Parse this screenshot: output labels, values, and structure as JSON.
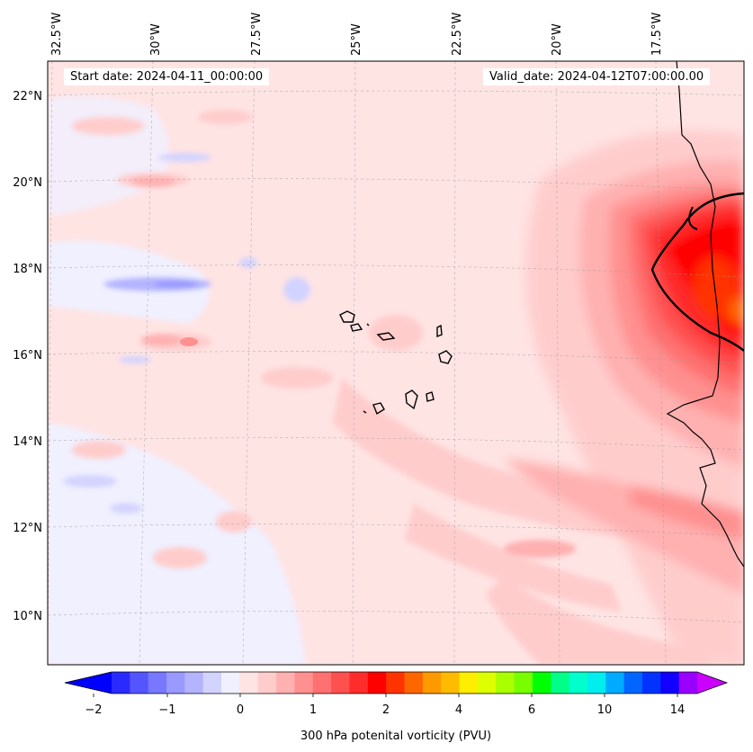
{
  "header": {
    "start_date": "Start date: 2024-04-11_00:00:00",
    "valid_date": "Valid_date: 2024-04-12T07:00:00.00"
  },
  "map": {
    "lon_labels": [
      "32.5°W",
      "30°W",
      "27.5°W",
      "25°W",
      "22.5°W",
      "20°W",
      "17.5°W"
    ],
    "lat_labels": [
      "22°N",
      "20°N",
      "18°N",
      "16°N",
      "14°N",
      "12°N",
      "10°N"
    ],
    "gridlines": true,
    "coastlines": true
  },
  "colorbar": {
    "label": "300 hPa potenital vorticity (PVU)",
    "tick_labels": [
      "−2",
      "−1",
      "0",
      "1",
      "2",
      "4",
      "6",
      "10",
      "14"
    ],
    "extend": "both",
    "colors": [
      "#0000ff",
      "#2a2aff",
      "#5555ff",
      "#7777ff",
      "#9999ff",
      "#b3b3ff",
      "#d3d3ff",
      "#f0f0ff",
      "#ffe4e4",
      "#ffcccc",
      "#ffb0b0",
      "#ff9090",
      "#ff7070",
      "#ff5050",
      "#ff2c2c",
      "#ff0000",
      "#ff3300",
      "#ff6600",
      "#ff9900",
      "#ffbb00",
      "#ffee00",
      "#ddff00",
      "#aaff00",
      "#77ff00",
      "#00ff00",
      "#00ff88",
      "#00ffcc",
      "#00eeee",
      "#00aaff",
      "#0066ff",
      "#0033ff",
      "#1100ff",
      "#9900ff",
      "#cc00ff"
    ]
  }
}
